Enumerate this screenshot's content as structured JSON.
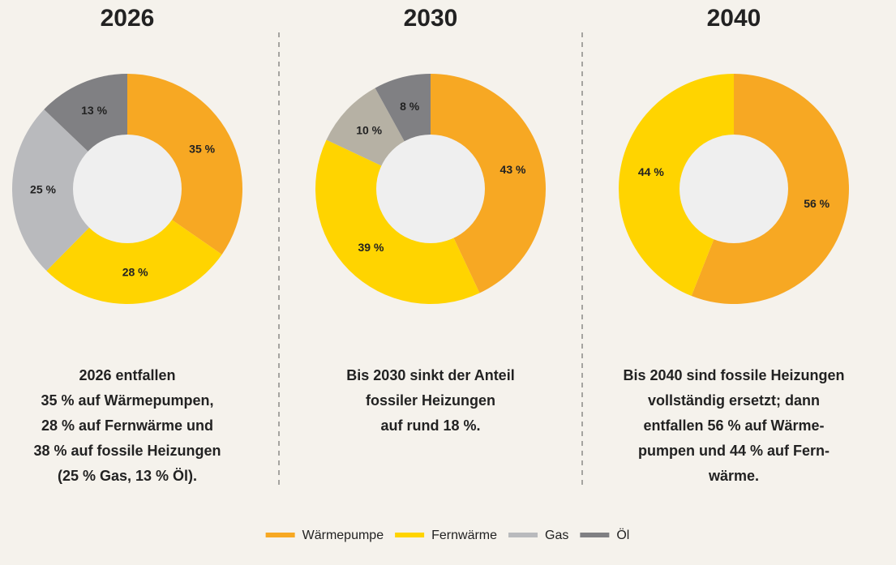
{
  "chart_data": [
    {
      "type": "pie",
      "title": "2026",
      "categories": [
        "Wärmepumpe",
        "Fernwärme",
        "Gas",
        "Öl"
      ],
      "values": [
        35,
        28,
        25,
        13
      ],
      "value_labels": [
        "35 %",
        "28 %",
        "25 %",
        "13 %"
      ],
      "colors": [
        "#f7a823",
        "#ffd400",
        "#b9babd",
        "#808083"
      ],
      "caption": [
        "2026 entfallen",
        "35 % auf Wärmepumpen,",
        "28 % auf Fernwärme und",
        "38 % auf fossile Heizungen",
        "(25 % Gas, 13 % Öl)."
      ]
    },
    {
      "type": "pie",
      "title": "2030",
      "categories": [
        "Wärmepumpe",
        "Fernwärme",
        "Gas",
        "Öl"
      ],
      "values": [
        43,
        39,
        10,
        8
      ],
      "value_labels": [
        "43 %",
        "39 %",
        "10 %",
        "8 %"
      ],
      "colors": [
        "#f7a823",
        "#ffd400",
        "#b6b1a4",
        "#808083"
      ],
      "caption": [
        "Bis 2030 sinkt der Anteil",
        "fossiler Heizungen",
        "auf rund 18 %."
      ]
    },
    {
      "type": "pie",
      "title": "2040",
      "categories": [
        "Wärmepumpe",
        "Fernwärme"
      ],
      "values": [
        56,
        44
      ],
      "value_labels": [
        "56 %",
        "44 %"
      ],
      "colors": [
        "#f7a823",
        "#ffd400"
      ],
      "caption": [
        "Bis 2040 sind fossile Heizungen",
        "vollständig ersetzt; dann",
        "entfallen 56 % auf Wärme-",
        "pumpen und 44 % auf Fern-",
        "wärme."
      ]
    }
  ]
}
